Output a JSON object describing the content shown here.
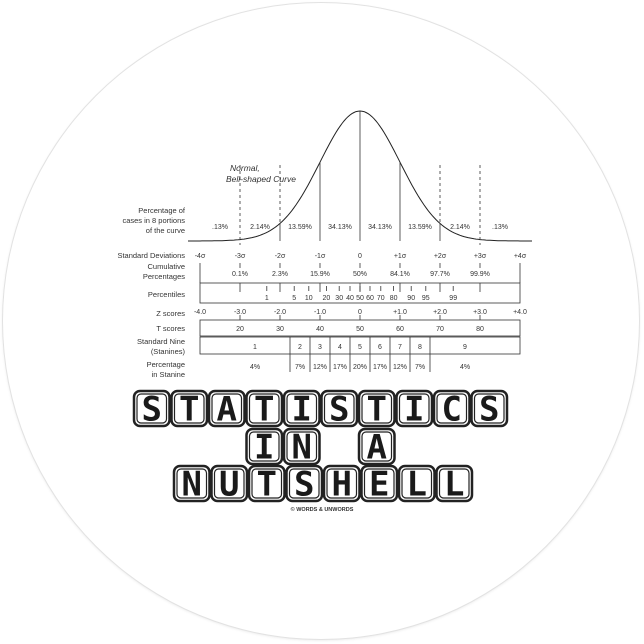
{
  "title_lines": [
    "STATISTICS",
    "IN A",
    "NUTSHELL"
  ],
  "copyright": "© WORDS & UNWORDS",
  "diagram": {
    "curve_label": [
      "Normal,",
      "Bell-shaped Curve"
    ],
    "row_labels": {
      "portions": [
        "Percentage of",
        "cases in 8 portions",
        "of the curve"
      ],
      "sd": "Standard Deviations",
      "cumulative": [
        "Cumulative",
        "Percentages"
      ],
      "percentiles": "Percentiles",
      "z": "Z scores",
      "t": "T scores",
      "stanine": [
        "Standard Nine",
        "(Stanines)"
      ],
      "stanine_pct": [
        "Percentage",
        "in Stanine"
      ]
    },
    "portions": [
      {
        "z": -3.5,
        "label": ".13%"
      },
      {
        "z": -2.5,
        "label": "2.14%"
      },
      {
        "z": -1.5,
        "label": "13.59%"
      },
      {
        "z": -0.5,
        "label": "34.13%"
      },
      {
        "z": 0.5,
        "label": "34.13%"
      },
      {
        "z": 1.5,
        "label": "13.59%"
      },
      {
        "z": 2.5,
        "label": "2.14%"
      },
      {
        "z": 3.5,
        "label": ".13%"
      }
    ],
    "sd_labels": [
      {
        "z": -4,
        "label": "-4σ"
      },
      {
        "z": -3,
        "label": "-3σ"
      },
      {
        "z": -2,
        "label": "-2σ"
      },
      {
        "z": -1,
        "label": "-1σ"
      },
      {
        "z": 0,
        "label": "0"
      },
      {
        "z": 1,
        "label": "+1σ"
      },
      {
        "z": 2,
        "label": "+2σ"
      },
      {
        "z": 3,
        "label": "+3σ"
      },
      {
        "z": 4,
        "label": "+4σ"
      }
    ],
    "cumulative": [
      {
        "z": -3,
        "label": "0.1%"
      },
      {
        "z": -2,
        "label": "2.3%"
      },
      {
        "z": -1,
        "label": "15.9%"
      },
      {
        "z": 0,
        "label": "50%"
      },
      {
        "z": 1,
        "label": "84.1%"
      },
      {
        "z": 2,
        "label": "97.7%"
      },
      {
        "z": 3,
        "label": "99.9%"
      }
    ],
    "percentiles": [
      {
        "z": -2.33,
        "label": "1"
      },
      {
        "z": -1.645,
        "label": "5"
      },
      {
        "z": -1.28,
        "label": "10"
      },
      {
        "z": -0.84,
        "label": "20"
      },
      {
        "z": -0.52,
        "label": "30"
      },
      {
        "z": -0.25,
        "label": "40"
      },
      {
        "z": 0,
        "label": "50"
      },
      {
        "z": 0.25,
        "label": "60"
      },
      {
        "z": 0.52,
        "label": "70"
      },
      {
        "z": 0.84,
        "label": "80"
      },
      {
        "z": 1.28,
        "label": "90"
      },
      {
        "z": 1.645,
        "label": "95"
      },
      {
        "z": 2.33,
        "label": "99"
      }
    ],
    "z_scores": [
      {
        "z": -4,
        "label": "-4.0"
      },
      {
        "z": -3,
        "label": "-3.0"
      },
      {
        "z": -2,
        "label": "-2.0"
      },
      {
        "z": -1,
        "label": "-1.0"
      },
      {
        "z": 0,
        "label": "0"
      },
      {
        "z": 1,
        "label": "+1.0"
      },
      {
        "z": 2,
        "label": "+2.0"
      },
      {
        "z": 3,
        "label": "+3.0"
      },
      {
        "z": 4,
        "label": "+4.0"
      }
    ],
    "t_scores": [
      {
        "z": -3,
        "label": "20"
      },
      {
        "z": -2,
        "label": "30"
      },
      {
        "z": -1,
        "label": "40"
      },
      {
        "z": 0,
        "label": "50"
      },
      {
        "z": 1,
        "label": "60"
      },
      {
        "z": 2,
        "label": "70"
      },
      {
        "z": 3,
        "label": "80"
      }
    ],
    "stanines": [
      {
        "from": -4,
        "to": -1.75,
        "label": "1",
        "pct": "4%"
      },
      {
        "from": -1.75,
        "to": -1.25,
        "label": "2",
        "pct": "7%"
      },
      {
        "from": -1.25,
        "to": -0.75,
        "label": "3",
        "pct": "12%"
      },
      {
        "from": -0.75,
        "to": -0.25,
        "label": "4",
        "pct": "17%"
      },
      {
        "from": -0.25,
        "to": 0.25,
        "label": "5",
        "pct": "20%"
      },
      {
        "from": 0.25,
        "to": 0.75,
        "label": "6",
        "pct": "17%"
      },
      {
        "from": 0.75,
        "to": 1.25,
        "label": "7",
        "pct": "12%"
      },
      {
        "from": 1.25,
        "to": 1.75,
        "label": "8",
        "pct": "7%"
      },
      {
        "from": 1.75,
        "to": 4,
        "label": "9",
        "pct": "4%"
      }
    ]
  }
}
